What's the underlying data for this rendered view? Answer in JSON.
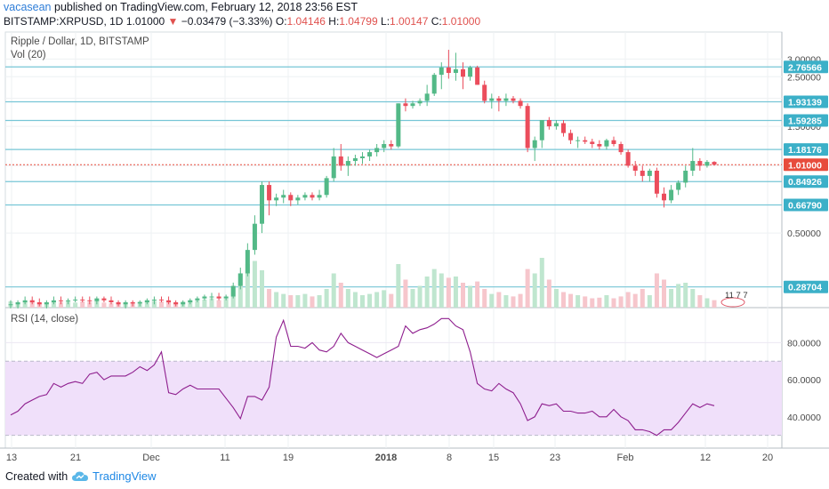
{
  "header": {
    "author": "vacasean",
    "published_text": "published on TradingView.com, February 12, 2018 23:56 EST",
    "symbol": "BITSTAMP:XRPUSD, 1D",
    "last": "1.01000",
    "change_arrow": "▼",
    "change": "−0.03479 (−3.33%)",
    "open_label": "O:",
    "open": "1.04146",
    "high_label": "H:",
    "high": "1.04799",
    "low_label": "L:",
    "low": "1.00147",
    "close_label": "C:",
    "close": "1.01000"
  },
  "legend": {
    "pane_title": "Ripple / Dollar, 1D, BITSTAMP",
    "volume_label": "Vol (20)",
    "rsi_label": "RSI (14, close)"
  },
  "volume_value": "11 7 7",
  "footer": {
    "created_with": "Created with",
    "brand": "TradingView",
    "logo_icon": "tradingview-cloud-icon"
  },
  "colors": {
    "up": "#53b987",
    "down": "#eb4d5c",
    "hline": "#77c6d6",
    "rsi_line": "#8e1e8e",
    "rsi_band": "#f0e0fa",
    "price_tag": "#e74c3c",
    "level_tag": "#3cb0c8"
  },
  "chart_data": {
    "type": "candlestick",
    "price_axis": {
      "scale": "log",
      "ticks": [
        "3.00000",
        "2.50000",
        "2.00000",
        "1.50000",
        "1.00000",
        "0.50000"
      ],
      "tick_values": [
        3.0,
        2.5,
        2.0,
        1.5,
        1.0,
        0.5
      ]
    },
    "time_axis": {
      "ticks": [
        "13",
        "21",
        "Dec",
        "11",
        "19",
        "2018",
        "8",
        "15",
        "23",
        "Feb",
        "12",
        "20"
      ]
    },
    "horizontal_levels": [
      {
        "label": "2.76566",
        "value": 2.76566
      },
      {
        "label": "1.93139",
        "value": 1.93139
      },
      {
        "label": "1.59285",
        "value": 1.59285
      },
      {
        "label": "1.18176",
        "value": 1.18176
      },
      {
        "label": "0.84926",
        "value": 0.84926
      },
      {
        "label": "0.66790",
        "value": 0.6679
      },
      {
        "label": "0.28704",
        "value": 0.28704
      }
    ],
    "current_price": {
      "label": "1.01000",
      "value": 1.01
    },
    "candles_ohlc": [
      [
        0.24,
        0.25,
        0.23,
        0.24
      ],
      [
        0.24,
        0.25,
        0.23,
        0.245
      ],
      [
        0.245,
        0.26,
        0.24,
        0.25
      ],
      [
        0.25,
        0.26,
        0.24,
        0.245
      ],
      [
        0.245,
        0.255,
        0.235,
        0.24
      ],
      [
        0.24,
        0.25,
        0.23,
        0.245
      ],
      [
        0.245,
        0.26,
        0.24,
        0.25
      ],
      [
        0.25,
        0.26,
        0.24,
        0.248
      ],
      [
        0.248,
        0.255,
        0.24,
        0.25
      ],
      [
        0.25,
        0.26,
        0.245,
        0.252
      ],
      [
        0.252,
        0.26,
        0.245,
        0.25
      ],
      [
        0.25,
        0.26,
        0.24,
        0.248
      ],
      [
        0.248,
        0.26,
        0.24,
        0.255
      ],
      [
        0.255,
        0.26,
        0.245,
        0.25
      ],
      [
        0.25,
        0.26,
        0.24,
        0.245
      ],
      [
        0.245,
        0.25,
        0.235,
        0.24
      ],
      [
        0.24,
        0.25,
        0.23,
        0.245
      ],
      [
        0.245,
        0.25,
        0.235,
        0.242
      ],
      [
        0.242,
        0.25,
        0.235,
        0.245
      ],
      [
        0.245,
        0.255,
        0.24,
        0.25
      ],
      [
        0.25,
        0.26,
        0.24,
        0.252
      ],
      [
        0.252,
        0.26,
        0.245,
        0.25
      ],
      [
        0.25,
        0.26,
        0.24,
        0.245
      ],
      [
        0.245,
        0.25,
        0.235,
        0.24
      ],
      [
        0.24,
        0.25,
        0.235,
        0.245
      ],
      [
        0.245,
        0.255,
        0.24,
        0.25
      ],
      [
        0.25,
        0.26,
        0.245,
        0.255
      ],
      [
        0.255,
        0.265,
        0.25,
        0.26
      ],
      [
        0.26,
        0.27,
        0.25,
        0.26
      ],
      [
        0.26,
        0.27,
        0.25,
        0.255
      ],
      [
        0.255,
        0.265,
        0.25,
        0.26
      ],
      [
        0.26,
        0.3,
        0.255,
        0.29
      ],
      [
        0.29,
        0.35,
        0.28,
        0.33
      ],
      [
        0.33,
        0.45,
        0.32,
        0.42
      ],
      [
        0.42,
        0.6,
        0.4,
        0.55
      ],
      [
        0.55,
        0.85,
        0.5,
        0.82
      ],
      [
        0.82,
        0.85,
        0.6,
        0.7
      ],
      [
        0.7,
        0.75,
        0.66,
        0.72
      ],
      [
        0.72,
        0.78,
        0.68,
        0.74
      ],
      [
        0.74,
        0.76,
        0.66,
        0.7
      ],
      [
        0.7,
        0.74,
        0.67,
        0.72
      ],
      [
        0.72,
        0.76,
        0.7,
        0.74
      ],
      [
        0.74,
        0.76,
        0.7,
        0.72
      ],
      [
        0.72,
        0.78,
        0.7,
        0.74
      ],
      [
        0.74,
        0.9,
        0.72,
        0.88
      ],
      [
        0.88,
        1.2,
        0.85,
        1.1
      ],
      [
        1.1,
        1.25,
        0.95,
        1.0
      ],
      [
        1.0,
        1.1,
        0.9,
        1.05
      ],
      [
        1.05,
        1.12,
        1.0,
        1.08
      ],
      [
        1.08,
        1.15,
        1.02,
        1.1
      ],
      [
        1.1,
        1.18,
        1.05,
        1.15
      ],
      [
        1.15,
        1.25,
        1.1,
        1.2
      ],
      [
        1.2,
        1.3,
        1.15,
        1.25
      ],
      [
        1.25,
        1.3,
        1.18,
        1.22
      ],
      [
        1.22,
        1.9,
        1.2,
        1.9
      ],
      [
        1.9,
        2.0,
        1.75,
        1.85
      ],
      [
        1.85,
        1.95,
        1.8,
        1.9
      ],
      [
        1.9,
        2.0,
        1.85,
        1.95
      ],
      [
        1.95,
        2.3,
        1.85,
        2.1
      ],
      [
        2.1,
        2.6,
        2.05,
        2.55
      ],
      [
        2.55,
        2.9,
        2.2,
        2.75
      ],
      [
        2.75,
        3.3,
        2.45,
        2.6
      ],
      [
        2.6,
        3.2,
        2.4,
        2.7
      ],
      [
        2.7,
        2.9,
        2.2,
        2.5
      ],
      [
        2.5,
        2.8,
        2.4,
        2.75
      ],
      [
        2.75,
        2.8,
        2.3,
        2.3
      ],
      [
        2.3,
        2.4,
        1.9,
        1.95
      ],
      [
        1.95,
        2.1,
        1.8,
        2.0
      ],
      [
        2.0,
        2.05,
        1.75,
        1.95
      ],
      [
        1.95,
        2.1,
        1.85,
        2.0
      ],
      [
        2.0,
        2.05,
        1.9,
        1.95
      ],
      [
        1.95,
        2.0,
        1.8,
        1.85
      ],
      [
        1.85,
        1.9,
        1.15,
        1.2
      ],
      [
        1.2,
        1.35,
        1.05,
        1.3
      ],
      [
        1.3,
        1.6,
        1.2,
        1.6
      ],
      [
        1.6,
        1.65,
        1.45,
        1.5
      ],
      [
        1.5,
        1.6,
        1.45,
        1.55
      ],
      [
        1.55,
        1.6,
        1.35,
        1.4
      ],
      [
        1.4,
        1.45,
        1.25,
        1.3
      ],
      [
        1.3,
        1.35,
        1.2,
        1.3
      ],
      [
        1.3,
        1.35,
        1.25,
        1.28
      ],
      [
        1.28,
        1.32,
        1.2,
        1.25
      ],
      [
        1.25,
        1.3,
        1.18,
        1.22
      ],
      [
        1.22,
        1.32,
        1.18,
        1.3
      ],
      [
        1.3,
        1.35,
        1.22,
        1.25
      ],
      [
        1.25,
        1.28,
        1.12,
        1.15
      ],
      [
        1.15,
        1.18,
        0.98,
        1.0
      ],
      [
        1.0,
        1.05,
        0.9,
        0.95
      ],
      [
        0.95,
        1.0,
        0.85,
        0.9
      ],
      [
        0.9,
        0.97,
        0.85,
        0.95
      ],
      [
        0.95,
        0.98,
        0.72,
        0.75
      ],
      [
        0.75,
        0.8,
        0.65,
        0.7
      ],
      [
        0.7,
        0.82,
        0.68,
        0.78
      ],
      [
        0.78,
        0.86,
        0.74,
        0.84
      ],
      [
        0.84,
        1.0,
        0.8,
        0.95
      ],
      [
        0.95,
        1.2,
        0.9,
        1.05
      ],
      [
        1.05,
        1.08,
        0.95,
        1.0
      ],
      [
        1.0,
        1.06,
        0.98,
        1.04
      ],
      [
        1.04,
        1.048,
        1.001,
        1.01
      ]
    ],
    "volume_relative": [
      0.1,
      0.08,
      0.09,
      0.12,
      0.07,
      0.08,
      0.1,
      0.09,
      0.11,
      0.08,
      0.1,
      0.09,
      0.12,
      0.08,
      0.07,
      0.06,
      0.08,
      0.09,
      0.1,
      0.12,
      0.11,
      0.1,
      0.09,
      0.08,
      0.1,
      0.12,
      0.11,
      0.13,
      0.15,
      0.12,
      0.14,
      0.35,
      0.55,
      0.7,
      0.75,
      0.6,
      0.3,
      0.25,
      0.22,
      0.2,
      0.2,
      0.22,
      0.18,
      0.2,
      0.3,
      0.55,
      0.4,
      0.3,
      0.25,
      0.2,
      0.22,
      0.25,
      0.28,
      0.22,
      0.7,
      0.45,
      0.3,
      0.35,
      0.5,
      0.62,
      0.55,
      0.48,
      0.5,
      0.4,
      0.35,
      0.42,
      0.3,
      0.22,
      0.25,
      0.2,
      0.18,
      0.22,
      0.62,
      0.55,
      0.8,
      0.45,
      0.3,
      0.25,
      0.22,
      0.2,
      0.18,
      0.15,
      0.16,
      0.2,
      0.15,
      0.18,
      0.25,
      0.22,
      0.3,
      0.2,
      0.55,
      0.45,
      0.3,
      0.38,
      0.4,
      0.3,
      0.2,
      0.15,
      0.12
    ],
    "rsi": {
      "name": "RSI (14, close)",
      "ticks": [
        "80.0000",
        "60.0000",
        "40.0000"
      ],
      "tick_values": [
        80,
        60,
        40
      ],
      "band": [
        30,
        70
      ],
      "values": [
        41,
        43,
        47,
        49,
        51,
        52,
        58,
        56,
        58,
        59,
        58,
        63,
        64,
        60,
        62,
        62,
        62,
        64,
        67,
        65,
        68,
        75,
        53,
        52,
        55,
        57,
        55,
        55,
        55,
        55,
        50,
        45,
        39,
        51,
        51,
        49,
        56,
        83,
        92,
        78,
        78,
        77,
        80,
        76,
        75,
        78,
        85,
        80,
        78,
        76,
        74,
        72,
        74,
        76,
        78,
        89,
        85,
        87,
        88,
        90,
        93,
        93,
        89,
        87,
        75,
        58,
        55,
        54,
        58,
        55,
        53,
        47,
        38,
        40,
        47,
        46,
        47,
        43,
        43,
        42,
        42,
        43,
        40,
        40,
        44,
        40,
        38,
        33,
        33,
        32,
        30,
        33,
        33,
        37,
        42,
        47,
        45,
        47,
        46
      ]
    }
  }
}
